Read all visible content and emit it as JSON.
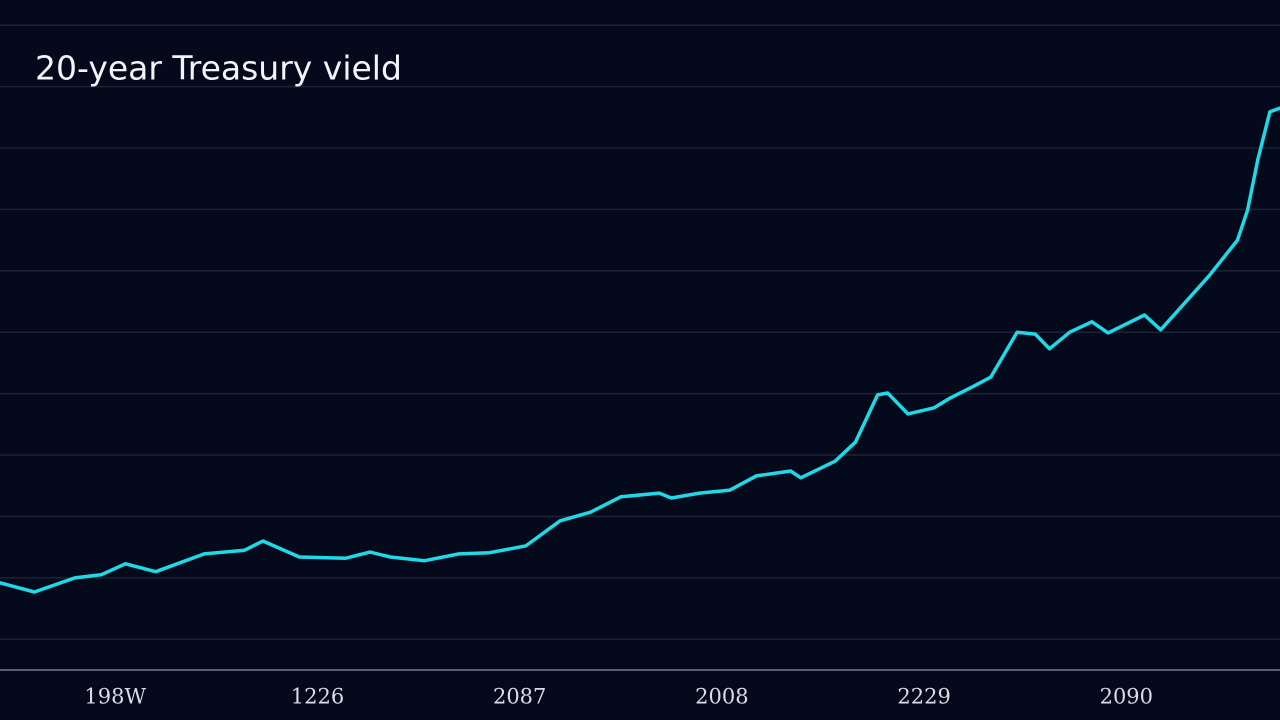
{
  "chart_data": {
    "type": "line",
    "title": "20-year Treasury vield",
    "x": [
      -0.57,
      -0.4,
      -0.2,
      -0.07,
      0.05,
      0.2,
      0.44,
      0.64,
      0.73,
      0.91,
      1.14,
      1.26,
      1.36,
      1.53,
      1.7,
      1.85,
      2.03,
      2.2,
      2.35,
      2.5,
      2.69,
      2.75,
      2.89,
      3.04,
      3.17,
      3.34,
      3.39,
      3.56,
      3.66,
      3.77,
      3.82,
      3.92,
      4.05,
      4.13,
      4.25,
      4.33,
      4.46,
      4.55,
      4.62,
      4.72,
      4.83,
      4.91,
      5.09,
      5.17,
      5.41,
      5.55,
      5.6,
      5.65,
      5.71,
      5.76
    ],
    "series": [
      {
        "color": "#1fd9e6",
        "values": [
          1.42,
          1.27,
          1.5,
          1.55,
          1.73,
          1.6,
          1.89,
          1.95,
          2.1,
          1.84,
          1.82,
          1.92,
          1.84,
          1.78,
          1.89,
          1.91,
          2.02,
          2.43,
          2.57,
          2.82,
          2.88,
          2.8,
          2.88,
          2.93,
          3.16,
          3.24,
          3.13,
          3.4,
          3.71,
          4.48,
          4.51,
          4.17,
          4.27,
          4.43,
          4.63,
          4.77,
          5.5,
          5.47,
          5.23,
          5.5,
          5.67,
          5.49,
          5.78,
          5.54,
          6.42,
          7.0,
          7.49,
          8.31,
          9.09,
          9.15
        ]
      }
    ],
    "xlim": [
      -0.57,
      5.76
    ],
    "xticks": [
      {
        "value": 0,
        "label": "198W"
      },
      {
        "value": 1,
        "label": "1226"
      },
      {
        "value": 2,
        "label": "2087"
      },
      {
        "value": 3,
        "label": "2008"
      },
      {
        "value": 4,
        "label": "2229"
      },
      {
        "value": 5,
        "label": "2090"
      }
    ],
    "ylim": [
      0,
      10.91
    ],
    "yticks": [
      0.5,
      1.5,
      2.5,
      3.5,
      4.5,
      5.5,
      6.5,
      7.5,
      8.5,
      9.5,
      10.5
    ],
    "grid": true
  }
}
